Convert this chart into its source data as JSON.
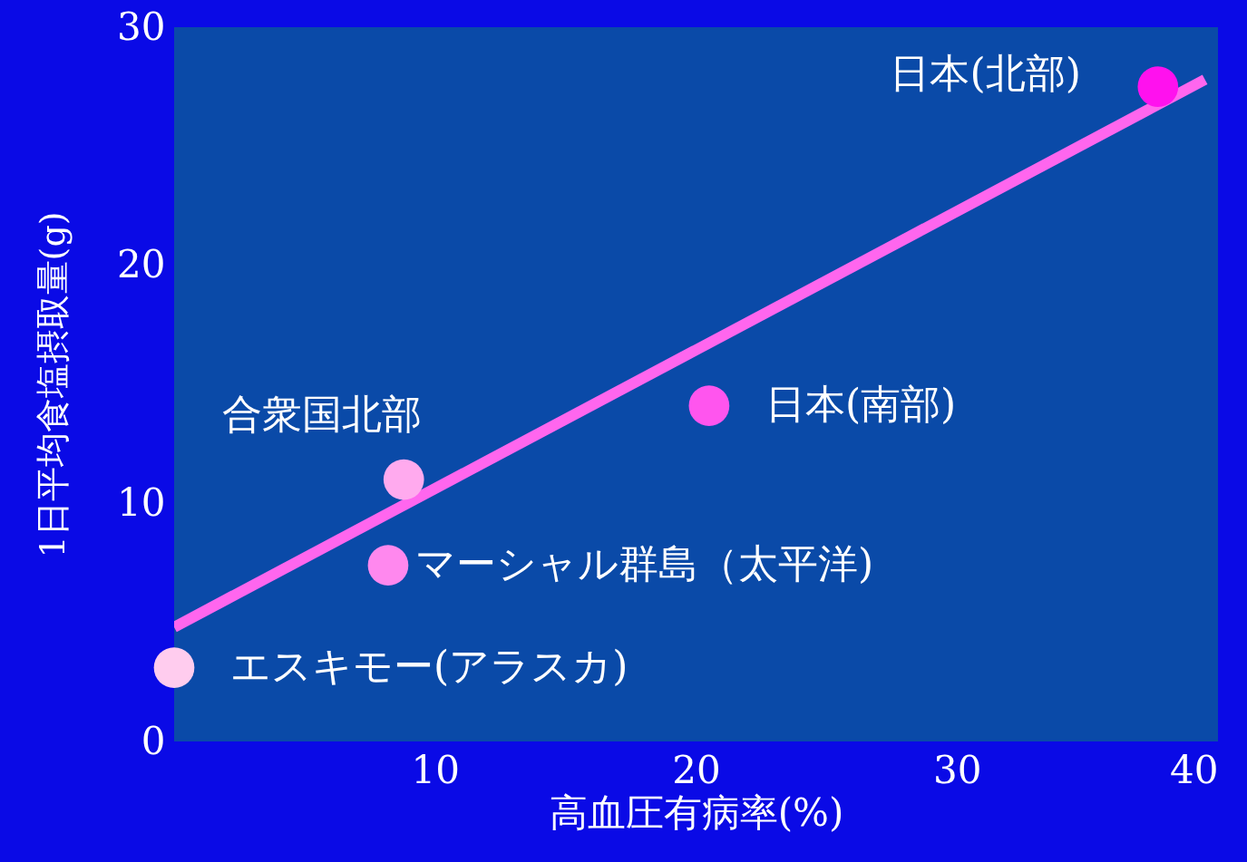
{
  "chart_data": {
    "type": "scatter",
    "xlabel": "高血圧有病率(%)",
    "ylabel": "1日平均食塩摂取量(g)",
    "xlim": [
      0,
      40
    ],
    "ylim": [
      0,
      30
    ],
    "xticks": [
      10,
      20,
      30,
      40
    ],
    "yticks": [
      0,
      10,
      20,
      30
    ],
    "grid": false,
    "marker": "circle",
    "series": [
      {
        "type": "line",
        "marker": "none",
        "line_style": "solid",
        "color": "#ff66ee",
        "x": [
          0,
          39.5
        ],
        "values": [
          4.8,
          27.8
        ]
      },
      {
        "x": [
          0,
          8.2,
          8.8,
          20.5,
          37.7
        ],
        "values": [
          3.1,
          7.4,
          11.0,
          14.1,
          27.5
        ],
        "colors": [
          "#ffccee",
          "#ff88ee",
          "#ffaaee",
          "#ff55ee",
          "#ff11ee"
        ]
      }
    ],
    "annotations": [
      {
        "text": "エスキモー(アラスカ)",
        "x": 0,
        "y": 3.1
      },
      {
        "text": "マーシャル群島（太平洋)",
        "x": 8.2,
        "y": 7.4
      },
      {
        "text": "合衆国北部",
        "x": 8.8,
        "y": 11.0
      },
      {
        "text": "日本(南部)",
        "x": 20.5,
        "y": 14.1
      },
      {
        "text": "日本(北部)",
        "x": 37.7,
        "y": 27.5
      }
    ]
  }
}
